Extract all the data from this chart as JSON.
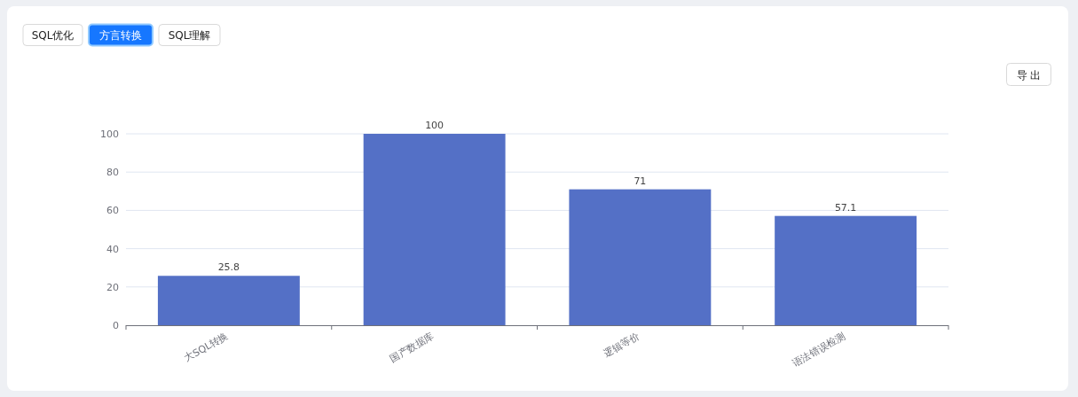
{
  "chart_data": {
    "type": "bar",
    "categories": [
      "大SQL转换",
      "国产数据库",
      "逻辑等价",
      "语法错误检测"
    ],
    "values": [
      25.8,
      100,
      71,
      57.1
    ],
    "color": "#5470c6",
    "ylim": [
      0,
      100
    ],
    "yticks": [
      0,
      20,
      40,
      60,
      80,
      100
    ],
    "grid": "y",
    "data_labels": true,
    "annotations": [
      "SQL优化",
      "方言转换",
      "SQL理解",
      "导 出"
    ]
  }
}
